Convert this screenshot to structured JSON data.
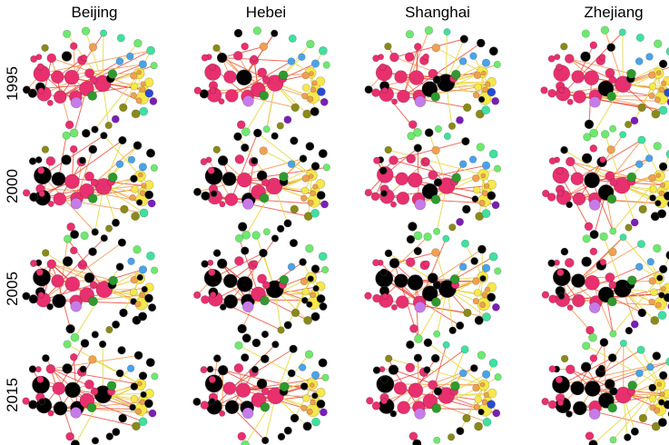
{
  "figure": {
    "columns": [
      "Beijing",
      "Hebei",
      "Shanghai",
      "Zhejiang"
    ],
    "rows": [
      "1995",
      "2000",
      "2005",
      "2015"
    ],
    "node_palette": {
      "pink": "#e8306e",
      "black": "#000000",
      "yellow": "#f7e84a",
      "lime": "#6fe86f",
      "mint": "#40e0a0",
      "blue": "#4aa3e8",
      "purple": "#7a1fb5",
      "violet": "#c77be8",
      "green": "#2e9a2e",
      "olive": "#8a8a1a",
      "orange": "#f0a050",
      "navy": "#2a4ad0"
    },
    "edge_colors": {
      "core": "#e83a2a",
      "periphery": "#e8d84a"
    }
  }
}
